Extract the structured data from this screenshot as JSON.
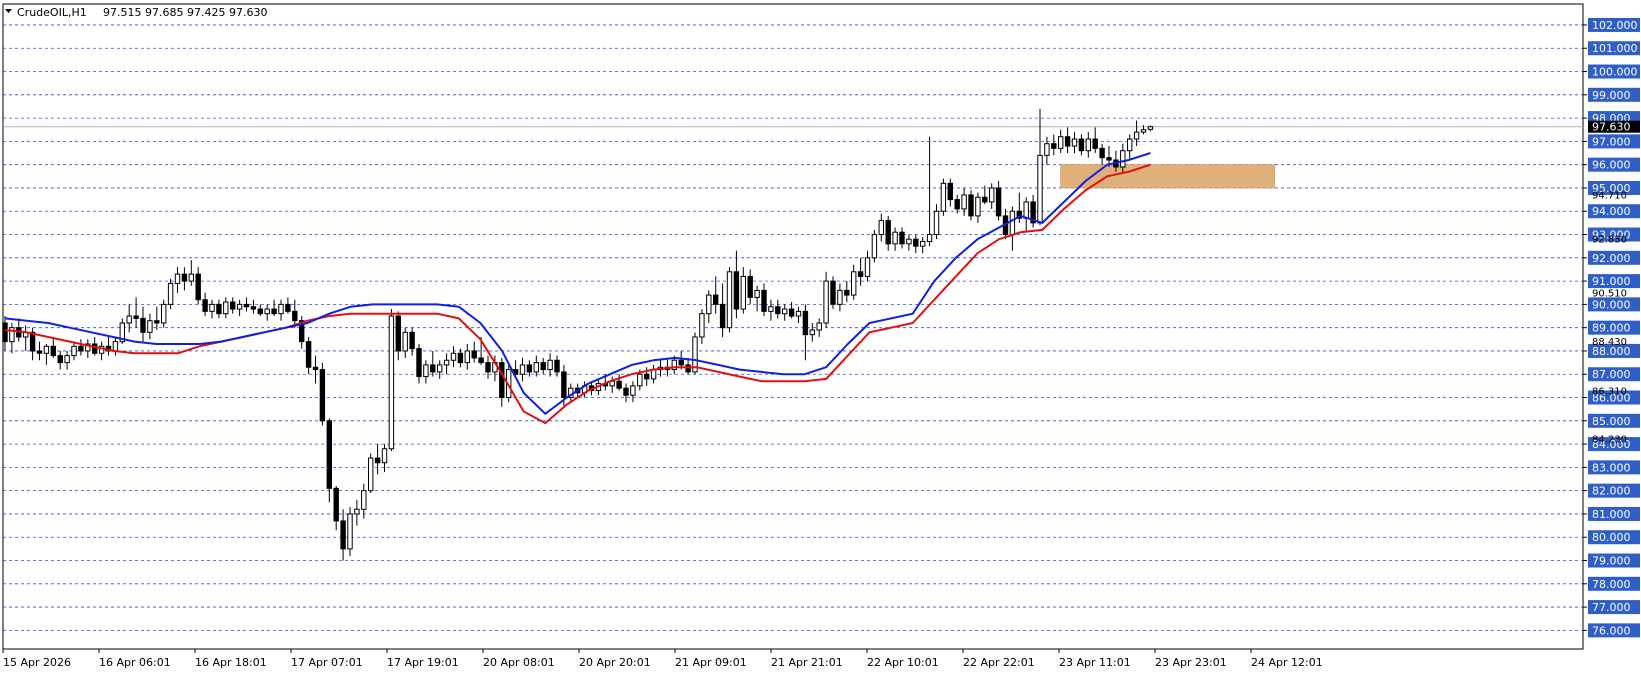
{
  "header": {
    "symbol": "CrudeOIL,H1",
    "ohlc": "97.515 97.685 97.425 97.630"
  },
  "colors": {
    "background": "#ffffff",
    "grid": "#2b4fd6",
    "candle": "#000000",
    "ma_fast": "#1020e0",
    "ma_slow": "#e01010",
    "zone": "#e0b07a",
    "price_tag": "#2f5ec8",
    "current_tag": "#000000"
  },
  "chart_data": {
    "type": "candlestick",
    "y_range": [
      75.2,
      102.9
    ],
    "x_labels": [
      "15 Apr 2026",
      "16 Apr 06:01",
      "16 Apr 18:01",
      "17 Apr 07:01",
      "17 Apr 19:01",
      "20 Apr 08:01",
      "20 Apr 20:01",
      "21 Apr 09:01",
      "21 Apr 21:01",
      "22 Apr 10:01",
      "22 Apr 22:01",
      "23 Apr 11:01",
      "23 Apr 23:01",
      "24 Apr 12:01"
    ],
    "y_tick_labels": [
      "102.000",
      "101.000",
      "100.000",
      "99.000",
      "98.000",
      "97.000",
      "96.000",
      "95.000",
      "94.000",
      "93.000",
      "92.000",
      "91.000",
      "90.000",
      "89.000",
      "88.000",
      "87.000",
      "86.000",
      "85.000",
      "84.000",
      "83.000",
      "82.000",
      "81.000",
      "80.000",
      "79.000",
      "78.000",
      "77.000",
      "76.000"
    ],
    "y_tick_values": [
      102,
      101,
      100,
      99,
      98,
      97,
      96,
      95,
      94,
      93,
      92,
      91,
      90,
      89,
      88,
      87,
      86,
      85,
      84,
      83,
      82,
      81,
      80,
      79,
      78,
      77,
      76
    ],
    "secondary_labels": [
      {
        "text": "94.710",
        "value": 94.71
      },
      {
        "text": "92.830",
        "value": 92.83
      },
      {
        "text": "90.510",
        "value": 90.51
      },
      {
        "text": "88.430",
        "value": 88.43
      },
      {
        "text": "86.310",
        "value": 86.31
      },
      {
        "text": "84.230",
        "value": 84.23
      }
    ],
    "current_price": {
      "text": "97.630",
      "value": 97.63
    },
    "zone": {
      "x_from": 153,
      "x_to": 184,
      "y_from": 95.0,
      "y_to": 96.0
    },
    "candles": [
      [
        89.2,
        89.5,
        88.0,
        88.4
      ],
      [
        88.4,
        89.2,
        87.9,
        89.0
      ],
      [
        89.0,
        89.4,
        88.4,
        88.6
      ],
      [
        88.6,
        89.1,
        88.0,
        88.8
      ],
      [
        88.8,
        89.0,
        87.6,
        88.0
      ],
      [
        88.0,
        88.4,
        87.6,
        87.9
      ],
      [
        87.9,
        88.3,
        87.4,
        88.2
      ],
      [
        88.2,
        88.6,
        87.7,
        87.8
      ],
      [
        87.8,
        88.0,
        87.2,
        87.5
      ],
      [
        87.5,
        88.0,
        87.2,
        87.8
      ],
      [
        87.8,
        88.4,
        87.6,
        88.2
      ],
      [
        88.2,
        88.5,
        87.8,
        88.0
      ],
      [
        88.0,
        88.5,
        87.7,
        88.3
      ],
      [
        88.3,
        88.6,
        87.8,
        87.9
      ],
      [
        87.9,
        88.4,
        87.6,
        88.2
      ],
      [
        88.2,
        88.6,
        87.8,
        88.0
      ],
      [
        88.0,
        88.6,
        87.8,
        88.4
      ],
      [
        88.4,
        89.4,
        88.3,
        89.2
      ],
      [
        89.2,
        90.0,
        88.8,
        89.5
      ],
      [
        89.5,
        90.3,
        89.0,
        89.4
      ],
      [
        89.4,
        89.9,
        88.4,
        88.8
      ],
      [
        88.8,
        89.6,
        88.5,
        89.3
      ],
      [
        89.3,
        89.9,
        88.9,
        89.2
      ],
      [
        89.2,
        90.2,
        89.0,
        90.0
      ],
      [
        90.0,
        91.1,
        89.8,
        90.9
      ],
      [
        90.9,
        91.6,
        90.5,
        91.3
      ],
      [
        91.3,
        91.6,
        90.6,
        91.0
      ],
      [
        91.0,
        91.9,
        90.8,
        91.3
      ],
      [
        91.3,
        91.6,
        90.0,
        90.2
      ],
      [
        90.2,
        90.5,
        89.5,
        89.7
      ],
      [
        89.7,
        90.2,
        89.4,
        90.0
      ],
      [
        90.0,
        90.2,
        89.4,
        89.6
      ],
      [
        89.6,
        90.3,
        89.4,
        90.1
      ],
      [
        90.1,
        90.3,
        89.6,
        89.8
      ],
      [
        89.8,
        90.2,
        89.5,
        90.0
      ],
      [
        90.0,
        90.3,
        89.7,
        89.9
      ],
      [
        89.9,
        90.2,
        89.6,
        89.8
      ],
      [
        89.8,
        90.0,
        89.5,
        89.6
      ],
      [
        89.6,
        90.0,
        89.3,
        89.8
      ],
      [
        89.8,
        90.2,
        89.5,
        89.6
      ],
      [
        89.6,
        90.2,
        89.3,
        90.0
      ],
      [
        90.0,
        90.3,
        89.6,
        89.7
      ],
      [
        89.7,
        90.2,
        89.0,
        89.3
      ],
      [
        89.3,
        89.5,
        88.1,
        88.4
      ],
      [
        88.4,
        88.6,
        87.0,
        87.3
      ],
      [
        87.3,
        87.8,
        86.6,
        87.2
      ],
      [
        87.2,
        87.5,
        84.8,
        85.0
      ],
      [
        85.0,
        85.1,
        81.5,
        82.1
      ],
      [
        82.1,
        82.2,
        80.3,
        80.7
      ],
      [
        80.7,
        81.2,
        79.0,
        79.5
      ],
      [
        79.5,
        81.3,
        79.2,
        81.0
      ],
      [
        81.0,
        81.6,
        80.5,
        81.2
      ],
      [
        81.2,
        82.3,
        80.8,
        82.0
      ],
      [
        82.0,
        83.6,
        81.9,
        83.4
      ],
      [
        83.4,
        84.0,
        82.7,
        83.2
      ],
      [
        83.2,
        84.0,
        82.8,
        83.8
      ],
      [
        83.8,
        89.8,
        83.7,
        89.5
      ],
      [
        89.5,
        89.7,
        87.6,
        88.0
      ],
      [
        88.0,
        89.0,
        87.7,
        88.8
      ],
      [
        88.8,
        89.0,
        87.8,
        88.1
      ],
      [
        88.1,
        88.3,
        86.6,
        86.9
      ],
      [
        86.9,
        87.6,
        86.6,
        87.4
      ],
      [
        87.4,
        88.0,
        86.9,
        87.1
      ],
      [
        87.1,
        87.6,
        86.8,
        87.4
      ],
      [
        87.4,
        87.9,
        87.0,
        87.6
      ],
      [
        87.6,
        88.2,
        87.3,
        87.9
      ],
      [
        87.9,
        88.1,
        87.3,
        87.5
      ],
      [
        87.5,
        88.3,
        87.2,
        88.0
      ],
      [
        88.0,
        88.4,
        87.5,
        87.7
      ],
      [
        87.7,
        88.6,
        87.4,
        87.5
      ],
      [
        87.5,
        87.8,
        86.8,
        87.1
      ],
      [
        87.1,
        87.8,
        86.7,
        87.5
      ],
      [
        87.5,
        87.7,
        85.6,
        86.0
      ],
      [
        86.0,
        87.4,
        85.8,
        87.2
      ],
      [
        87.2,
        87.6,
        86.8,
        87.0
      ],
      [
        87.0,
        87.7,
        86.7,
        87.4
      ],
      [
        87.4,
        87.6,
        86.9,
        87.1
      ],
      [
        87.1,
        87.8,
        86.9,
        87.5
      ],
      [
        87.5,
        87.7,
        87.0,
        87.2
      ],
      [
        87.2,
        87.9,
        86.9,
        87.6
      ],
      [
        87.6,
        87.8,
        86.9,
        87.1
      ],
      [
        87.1,
        87.4,
        85.6,
        86.0
      ],
      [
        86.0,
        86.6,
        85.8,
        86.4
      ],
      [
        86.4,
        86.6,
        86.0,
        86.2
      ],
      [
        86.2,
        86.7,
        86.0,
        86.5
      ],
      [
        86.5,
        86.7,
        86.1,
        86.3
      ],
      [
        86.3,
        86.8,
        86.1,
        86.6
      ],
      [
        86.6,
        87.0,
        86.3,
        86.5
      ],
      [
        86.5,
        86.9,
        86.2,
        86.7
      ],
      [
        86.7,
        87.0,
        86.3,
        86.4
      ],
      [
        86.4,
        86.6,
        85.8,
        86.1
      ],
      [
        86.1,
        86.7,
        85.8,
        86.5
      ],
      [
        86.5,
        87.2,
        86.3,
        87.0
      ],
      [
        87.0,
        87.3,
        86.5,
        86.8
      ],
      [
        86.8,
        87.4,
        86.6,
        87.2
      ],
      [
        87.2,
        87.6,
        86.9,
        87.3
      ],
      [
        87.3,
        87.7,
        86.9,
        87.2
      ],
      [
        87.2,
        87.8,
        87.0,
        87.6
      ],
      [
        87.6,
        88.0,
        87.2,
        87.4
      ],
      [
        87.4,
        87.7,
        87.0,
        87.1
      ],
      [
        87.1,
        88.8,
        87.0,
        88.6
      ],
      [
        88.6,
        89.8,
        88.3,
        89.6
      ],
      [
        89.6,
        90.6,
        89.2,
        90.4
      ],
      [
        90.4,
        91.2,
        89.6,
        90.0
      ],
      [
        90.0,
        90.9,
        88.6,
        89.0
      ],
      [
        89.0,
        91.6,
        88.8,
        91.4
      ],
      [
        91.4,
        92.3,
        89.4,
        89.8
      ],
      [
        89.8,
        91.6,
        89.6,
        91.2
      ],
      [
        91.2,
        91.5,
        90.0,
        90.3
      ],
      [
        90.3,
        90.8,
        89.7,
        90.6
      ],
      [
        90.6,
        90.9,
        89.5,
        89.7
      ],
      [
        89.7,
        90.2,
        89.3,
        89.9
      ],
      [
        89.9,
        90.2,
        89.4,
        89.6
      ],
      [
        89.6,
        90.0,
        89.3,
        89.8
      ],
      [
        89.8,
        90.1,
        89.4,
        89.5
      ],
      [
        89.5,
        89.9,
        89.2,
        89.7
      ],
      [
        89.7,
        90.0,
        87.6,
        88.7
      ],
      [
        88.7,
        89.2,
        88.4,
        88.9
      ],
      [
        88.9,
        89.4,
        88.6,
        89.2
      ],
      [
        89.2,
        91.4,
        89.0,
        91.0
      ],
      [
        91.0,
        91.2,
        89.8,
        90.0
      ],
      [
        90.0,
        90.9,
        89.7,
        90.6
      ],
      [
        90.6,
        91.0,
        90.1,
        90.4
      ],
      [
        90.4,
        91.7,
        90.2,
        91.4
      ],
      [
        91.4,
        92.0,
        90.8,
        91.2
      ],
      [
        91.2,
        92.3,
        91.0,
        92.0
      ],
      [
        92.0,
        93.2,
        91.8,
        93.0
      ],
      [
        93.0,
        93.9,
        92.7,
        93.6
      ],
      [
        93.6,
        93.8,
        92.3,
        92.6
      ],
      [
        92.6,
        93.3,
        92.3,
        93.1
      ],
      [
        93.1,
        93.3,
        92.4,
        92.6
      ],
      [
        92.6,
        93.0,
        92.3,
        92.8
      ],
      [
        92.8,
        93.0,
        92.2,
        92.5
      ],
      [
        92.5,
        92.9,
        92.2,
        92.7
      ],
      [
        92.7,
        97.2,
        92.5,
        93.0
      ],
      [
        93.0,
        94.3,
        92.8,
        94.0
      ],
      [
        94.0,
        95.4,
        93.8,
        95.2
      ],
      [
        95.2,
        95.4,
        94.2,
        94.5
      ],
      [
        94.5,
        94.7,
        93.9,
        94.1
      ],
      [
        94.1,
        95.0,
        93.8,
        94.7
      ],
      [
        94.7,
        94.9,
        93.6,
        93.8
      ],
      [
        93.8,
        94.8,
        93.5,
        94.6
      ],
      [
        94.6,
        95.1,
        94.3,
        94.4
      ],
      [
        94.4,
        95.2,
        94.1,
        95.0
      ],
      [
        95.0,
        95.3,
        93.6,
        93.8
      ],
      [
        93.8,
        94.1,
        92.8,
        93.0
      ],
      [
        93.0,
        94.2,
        92.3,
        94.0
      ],
      [
        94.0,
        94.8,
        93.5,
        93.7
      ],
      [
        93.7,
        94.6,
        93.1,
        94.4
      ],
      [
        94.4,
        94.7,
        93.3,
        93.5
      ],
      [
        93.5,
        98.4,
        93.4,
        96.4
      ],
      [
        96.4,
        97.2,
        96.0,
        96.9
      ],
      [
        96.9,
        97.3,
        96.4,
        96.7
      ],
      [
        96.7,
        97.5,
        96.5,
        97.2
      ],
      [
        97.2,
        97.6,
        96.5,
        96.8
      ],
      [
        96.8,
        97.4,
        96.5,
        97.1
      ],
      [
        97.1,
        97.3,
        96.4,
        96.6
      ],
      [
        96.6,
        97.4,
        96.3,
        97.1
      ],
      [
        97.1,
        97.6,
        96.5,
        96.7
      ],
      [
        96.7,
        96.9,
        96.0,
        96.3
      ],
      [
        96.3,
        96.8,
        95.9,
        96.2
      ],
      [
        96.2,
        96.6,
        95.7,
        95.9
      ],
      [
        95.9,
        96.9,
        95.6,
        96.6
      ],
      [
        96.6,
        97.3,
        96.2,
        97.1
      ],
      [
        97.1,
        97.9,
        96.8,
        97.4
      ],
      [
        97.4,
        97.7,
        97.3,
        97.5
      ],
      [
        97.515,
        97.685,
        97.425,
        97.63
      ]
    ],
    "ma_fast": [
      89.4,
      89.3,
      89.2,
      89.0,
      88.8,
      88.6,
      88.4,
      88.3,
      88.3,
      88.3,
      88.4,
      88.6,
      88.8,
      89.0,
      89.2,
      89.6,
      89.9,
      90.0,
      90.0,
      90.0,
      90.0,
      89.9,
      89.2,
      88.0,
      86.2,
      85.3,
      86.0,
      86.6,
      87.0,
      87.4,
      87.6,
      87.7,
      87.6,
      87.4,
      87.2,
      87.1,
      87.0,
      87.0,
      87.3,
      88.3,
      89.2,
      89.4,
      89.6,
      91.0,
      92.0,
      92.8,
      93.3,
      93.8,
      93.5,
      94.4,
      95.3,
      96.0,
      96.2,
      96.5
    ],
    "ma_slow": [
      88.9,
      88.8,
      88.6,
      88.4,
      88.2,
      88.0,
      87.9,
      87.9,
      87.9,
      88.2,
      88.4,
      88.6,
      88.8,
      89.0,
      89.3,
      89.5,
      89.6,
      89.6,
      89.6,
      89.6,
      89.6,
      89.4,
      88.5,
      87.0,
      85.4,
      84.9,
      85.7,
      86.3,
      86.7,
      87.0,
      87.2,
      87.3,
      87.3,
      87.1,
      86.9,
      86.7,
      86.7,
      86.7,
      86.8,
      87.8,
      88.8,
      89.0,
      89.2,
      90.2,
      91.2,
      92.2,
      92.8,
      93.1,
      93.2,
      94.1,
      94.9,
      95.5,
      95.7,
      96.0
    ]
  }
}
